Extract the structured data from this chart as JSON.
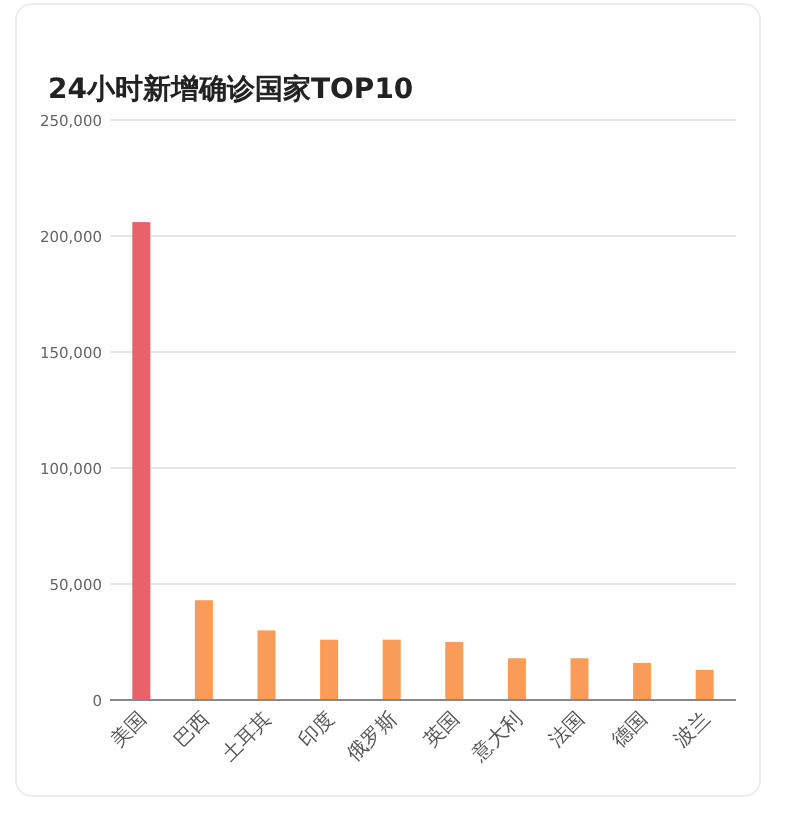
{
  "chart_data": {
    "type": "bar",
    "title": "24小时新增确诊国家TOP10",
    "categories": [
      "美国",
      "巴西",
      "土耳其",
      "印度",
      "俄罗斯",
      "英国",
      "意大利",
      "法国",
      "德国",
      "波兰"
    ],
    "values": [
      206000,
      43000,
      30000,
      26000,
      26000,
      25000,
      18000,
      18000,
      16000,
      13000
    ],
    "colors": [
      "#e8626a",
      "#f89c57",
      "#f89c57",
      "#f89c57",
      "#f89c57",
      "#f89c57",
      "#f89c57",
      "#f89c57",
      "#f89c57",
      "#f89c57"
    ],
    "ylim": [
      0,
      250000
    ],
    "yticks": [
      0,
      {
        "value": 50000,
        "label": "50,000"
      },
      {
        "value": 100000,
        "label": "100,000"
      },
      {
        "value": 150000,
        "label": "150,000"
      },
      {
        "value": 200000,
        "label": "200,000"
      },
      {
        "value": 250000,
        "label": "250,000"
      }
    ],
    "grid": "y"
  }
}
